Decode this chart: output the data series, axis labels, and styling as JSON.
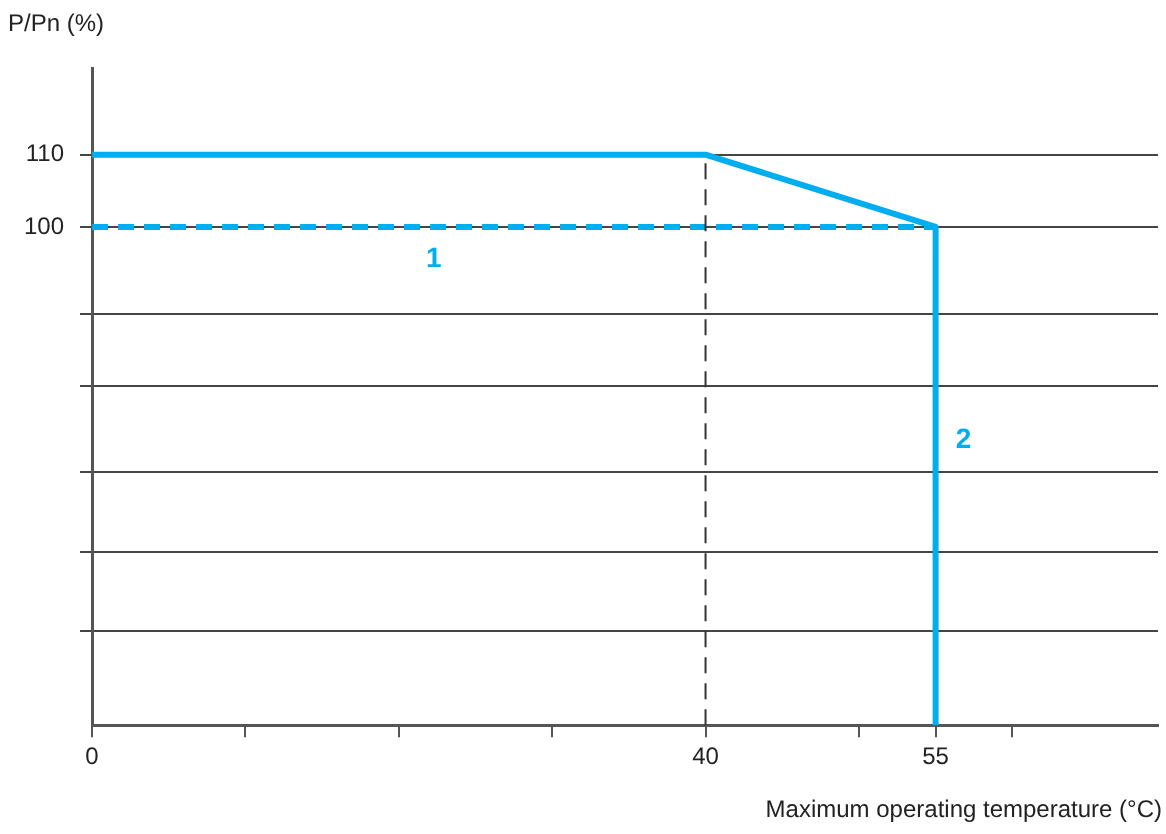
{
  "chart_data": {
    "type": "line",
    "ylabel": "P/Pn (%)",
    "xlabel": "Maximum operating temperature (°C)",
    "xlim": [
      0,
      69.5
    ],
    "xticks": [
      0,
      {
        "value": 10,
        "label": null
      },
      {
        "value": 20,
        "label": null
      },
      {
        "value": 30,
        "label": null
      },
      40,
      {
        "value": 50,
        "label": null
      },
      55,
      {
        "value": 60,
        "label": null
      }
    ],
    "ylim": [
      31,
      122
    ],
    "yticks": [
      {
        "value": 44,
        "label": null
      },
      {
        "value": 55,
        "label": null
      },
      {
        "value": 66,
        "label": null
      },
      {
        "value": 78,
        "label": null
      },
      {
        "value": 88,
        "label": null
      },
      100,
      110
    ],
    "grid": "y",
    "legend": false,
    "marker": "none",
    "series": [
      {
        "x": [
          0,
          40,
          55,
          55
        ],
        "values": [
          110,
          110,
          100,
          31
        ],
        "color": "#00aeef",
        "line_style": "solid"
      },
      {
        "x": [
          0,
          55
        ],
        "values": [
          100,
          100
        ],
        "color": "#00aeef",
        "line_style": "dashed"
      }
    ],
    "ref_lines": [
      {
        "axis": "x",
        "value": 40,
        "color": "#333333",
        "line_style": "dashed"
      }
    ],
    "annotations": [
      "1",
      "2"
    ]
  }
}
